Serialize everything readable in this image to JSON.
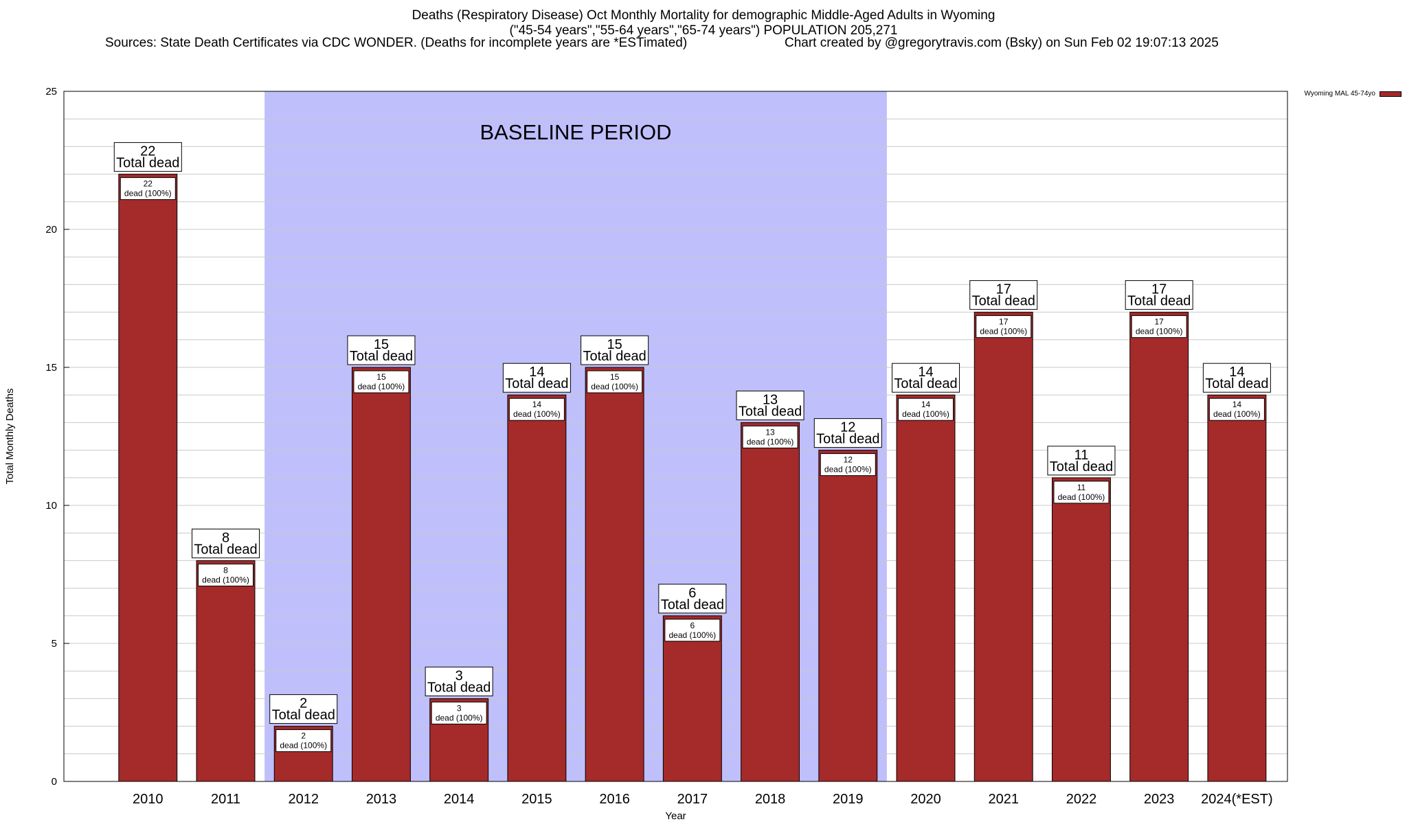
{
  "header": {
    "title_line1": "Deaths (Respiratory Disease) Oct Monthly Mortality for demographic Middle-Aged Adults in Wyoming",
    "title_line2": "(\"45-54 years\",\"55-64 years\",\"65-74 years\") POPULATION 205,271",
    "sources": "Sources: State Death Certificates via CDC WONDER. (Deaths for incomplete years are *ESTimated)",
    "credit": "Chart created by @gregorytravis.com (Bsky) on Sun Feb 02 19:07:13 2025"
  },
  "legend": {
    "label": "Wyoming MAL 45-74yo"
  },
  "colors": {
    "bar": "#a52a2a",
    "baseline_band": "#bfbffc",
    "grid": "#c8c8c8"
  },
  "chart_data": {
    "type": "bar",
    "title": "Deaths (Respiratory Disease) Oct Monthly Mortality for demographic Middle-Aged Adults in Wyoming",
    "xlabel": "Year",
    "ylabel": "Total Monthly Deaths",
    "ylim": [
      0,
      25
    ],
    "yticks": [
      0,
      5,
      10,
      15,
      20,
      25
    ],
    "grid": true,
    "legend_position": "top-right",
    "categories": [
      "2010",
      "2011",
      "2012",
      "2013",
      "2014",
      "2015",
      "2016",
      "2017",
      "2018",
      "2019",
      "2020",
      "2021",
      "2022",
      "2023",
      "2024(*EST)"
    ],
    "series": [
      {
        "name": "Wyoming MAL 45-74yo",
        "values": [
          22,
          8,
          2,
          15,
          3,
          14,
          15,
          6,
          13,
          12,
          14,
          17,
          11,
          17,
          14
        ]
      }
    ],
    "total_label_suffix": "Total dead",
    "inner_label_suffix": "dead (100%)",
    "annotation": {
      "text": "BASELINE PERIOD",
      "from": "2012",
      "to": "2019"
    }
  }
}
